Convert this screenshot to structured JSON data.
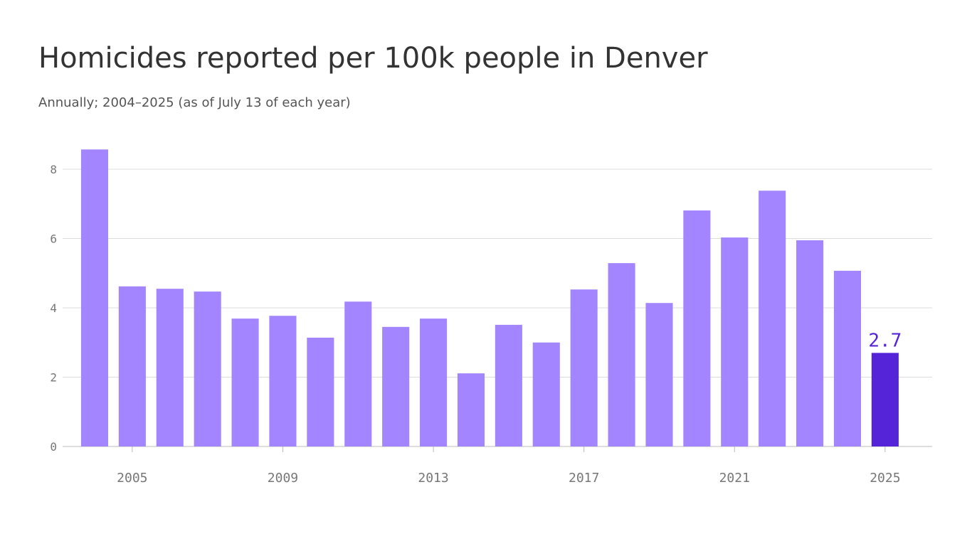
{
  "chart_data": {
    "type": "bar",
    "title": "Homicides reported per 100k people in Denver",
    "subtitle": "Annually; 2004–2025 (as of July 13 of each year)",
    "x": [
      2004,
      2005,
      2006,
      2007,
      2008,
      2009,
      2010,
      2011,
      2012,
      2013,
      2014,
      2015,
      2016,
      2017,
      2018,
      2019,
      2020,
      2021,
      2022,
      2023,
      2024,
      2025
    ],
    "values": [
      8.57,
      4.62,
      4.55,
      4.47,
      3.69,
      3.77,
      3.14,
      4.18,
      3.45,
      3.69,
      2.11,
      3.51,
      3.0,
      4.53,
      5.29,
      4.14,
      6.81,
      6.03,
      7.38,
      5.95,
      5.07,
      2.7
    ],
    "value_labels": [
      null,
      null,
      null,
      null,
      null,
      null,
      null,
      null,
      null,
      null,
      null,
      null,
      null,
      null,
      null,
      null,
      null,
      null,
      null,
      null,
      null,
      "2.7"
    ],
    "colors": [
      "#a385ff",
      "#a385ff",
      "#a385ff",
      "#a385ff",
      "#a385ff",
      "#a385ff",
      "#a385ff",
      "#a385ff",
      "#a385ff",
      "#a385ff",
      "#a385ff",
      "#a385ff",
      "#a385ff",
      "#a385ff",
      "#a385ff",
      "#a385ff",
      "#a385ff",
      "#a385ff",
      "#a385ff",
      "#a385ff",
      "#a385ff",
      "#5523d8"
    ],
    "xlim": [
      2003.15,
      2026.25
    ],
    "xticks": [
      2005,
      2009,
      2013,
      2017,
      2021,
      2025
    ],
    "ylim": [
      0,
      8.78
    ],
    "yticks": [
      0,
      2,
      4,
      6,
      8
    ],
    "grid": true
  }
}
